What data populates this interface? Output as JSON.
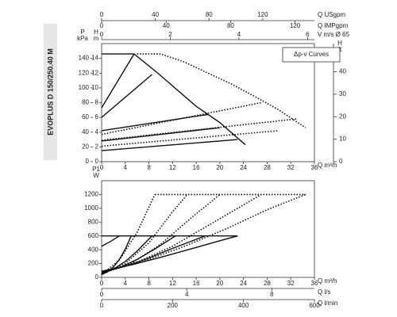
{
  "chart_data": [
    {
      "type": "line",
      "title": "EVOPLUS D 150/250.40 M",
      "annotation": "Δp-v Curves",
      "xlabel": "Q m³/h",
      "xlim": [
        0,
        36
      ],
      "xticks": [
        0,
        4,
        8,
        12,
        16,
        20,
        24,
        28,
        32,
        36
      ],
      "ylabel": [
        "H",
        "m"
      ],
      "ylim": [
        0,
        16
      ],
      "yticks": [
        0,
        2,
        4,
        6,
        8,
        10,
        12,
        14
      ],
      "kpa_axis": {
        "label": [
          "P",
          "kPa"
        ],
        "lim": [
          0,
          160
        ],
        "ticks": [
          0,
          20,
          40,
          60,
          80,
          100,
          120,
          140
        ]
      },
      "y2label": [
        "H",
        "ft"
      ],
      "y2lim": [
        0,
        52.5
      ],
      "y2ticks": [
        0,
        10,
        20,
        30,
        40
      ],
      "top_axes": [
        {
          "label": "Q USgpm",
          "lim": [
            0,
            158.5
          ],
          "ticks": [
            0,
            40,
            80,
            120
          ]
        },
        {
          "label": "Q IMPgpm",
          "lim": [
            0,
            132
          ],
          "ticks": [
            0,
            40,
            80,
            120
          ]
        },
        {
          "label": "V m/s Ø 65",
          "lim": [
            0,
            6.2
          ],
          "ticks": [
            0,
            2,
            4,
            6
          ]
        }
      ],
      "series": [
        {
          "color": "#111",
          "dash": false,
          "x": [
            0,
            5.5,
            9.5,
            16,
            20,
            24.3
          ],
          "values": [
            14.6,
            14.6,
            12,
            7.5,
            5.3,
            2.3
          ]
        },
        {
          "color": "#111",
          "dash": false,
          "x": [
            0,
            5.5
          ],
          "values": [
            7.3,
            14.6
          ]
        },
        {
          "color": "#111",
          "dash": false,
          "x": [
            0,
            8.5
          ],
          "values": [
            6,
            11.8
          ]
        },
        {
          "color": "#111",
          "dash": false,
          "x": [
            0,
            18
          ],
          "values": [
            4.2,
            6.4
          ]
        },
        {
          "color": "#111",
          "dash": false,
          "x": [
            0,
            20
          ],
          "values": [
            2.8,
            4.6
          ]
        },
        {
          "color": "#111",
          "dash": false,
          "x": [
            0,
            23
          ],
          "values": [
            1.5,
            3
          ]
        },
        {
          "color": "#111",
          "dash": true,
          "x": [
            6,
            10,
            14,
            18,
            22,
            26,
            30,
            34.5
          ],
          "values": [
            14.6,
            14.6,
            13.5,
            12,
            10.5,
            8.8,
            7,
            4.6
          ]
        },
        {
          "color": "#111",
          "dash": true,
          "x": [
            0,
            27
          ],
          "values": [
            3.7,
            8
          ]
        },
        {
          "color": "#111",
          "dash": true,
          "x": [
            0,
            33
          ],
          "values": [
            2.9,
            5.8
          ]
        },
        {
          "color": "#111",
          "dash": true,
          "x": [
            0,
            30
          ],
          "values": [
            2.1,
            4.2
          ]
        }
      ]
    },
    {
      "type": "line",
      "xlabel": "Q m³/h",
      "xlim": [
        0,
        36
      ],
      "xticks": [
        0,
        4,
        8,
        12,
        16,
        20,
        24,
        28,
        32,
        36
      ],
      "ylabel": [
        "P1",
        "W"
      ],
      "ylim": [
        0,
        1400
      ],
      "yticks": [
        0,
        200,
        400,
        600,
        800,
        1000,
        1200
      ],
      "bottom_axes": [
        {
          "label": "Q l/s",
          "lim": [
            0,
            10
          ],
          "ticks": [
            0,
            4,
            8
          ]
        },
        {
          "label": "Q l/min",
          "lim": [
            0,
            600
          ],
          "ticks": [
            0,
            200,
            400,
            600
          ]
        }
      ],
      "series": [
        {
          "color": "#111",
          "dash": false,
          "x": [
            0,
            23
          ],
          "values": [
            600,
            600
          ]
        },
        {
          "color": "#111",
          "dash": false,
          "x": [
            0,
            1.5,
            3
          ],
          "values": [
            450,
            520,
            600
          ]
        },
        {
          "color": "#111",
          "dash": false,
          "x": [
            0,
            1,
            2,
            3,
            4,
            5
          ],
          "values": [
            40,
            80,
            150,
            260,
            410,
            600
          ]
        },
        {
          "color": "#111",
          "dash": false,
          "x": [
            0,
            2,
            4,
            6,
            8.5
          ],
          "values": [
            50,
            120,
            230,
            380,
            600
          ]
        },
        {
          "color": "#111",
          "dash": false,
          "x": [
            0,
            3,
            6,
            9,
            12.5
          ],
          "values": [
            60,
            140,
            260,
            410,
            600
          ]
        },
        {
          "color": "#111",
          "dash": false,
          "x": [
            0,
            4,
            8,
            12,
            17.5
          ],
          "values": [
            75,
            160,
            280,
            420,
            600
          ]
        },
        {
          "color": "#111",
          "dash": false,
          "x": [
            0,
            5,
            10,
            15,
            20,
            23
          ],
          "values": [
            90,
            180,
            290,
            410,
            530,
            600
          ]
        },
        {
          "color": "#111",
          "dash": true,
          "x": [
            9,
            34.5
          ],
          "values": [
            1200,
            1200
          ]
        },
        {
          "color": "#111",
          "dash": true,
          "x": [
            0,
            3,
            6,
            9
          ],
          "values": [
            40,
            250,
            650,
            1200
          ]
        },
        {
          "color": "#111",
          "dash": true,
          "x": [
            0,
            4,
            8,
            12,
            14.5
          ],
          "values": [
            50,
            200,
            500,
            950,
            1200
          ]
        },
        {
          "color": "#111",
          "dash": true,
          "x": [
            0,
            5,
            10,
            15,
            20
          ],
          "values": [
            60,
            200,
            480,
            850,
            1200
          ]
        },
        {
          "color": "#111",
          "dash": true,
          "x": [
            0,
            6,
            12,
            18,
            24,
            27
          ],
          "values": [
            70,
            220,
            450,
            750,
            1050,
            1200
          ]
        },
        {
          "color": "#111",
          "dash": true,
          "x": [
            0,
            7,
            14,
            21,
            28,
            34.5
          ],
          "values": [
            80,
            230,
            450,
            700,
            980,
            1200
          ]
        }
      ]
    }
  ]
}
